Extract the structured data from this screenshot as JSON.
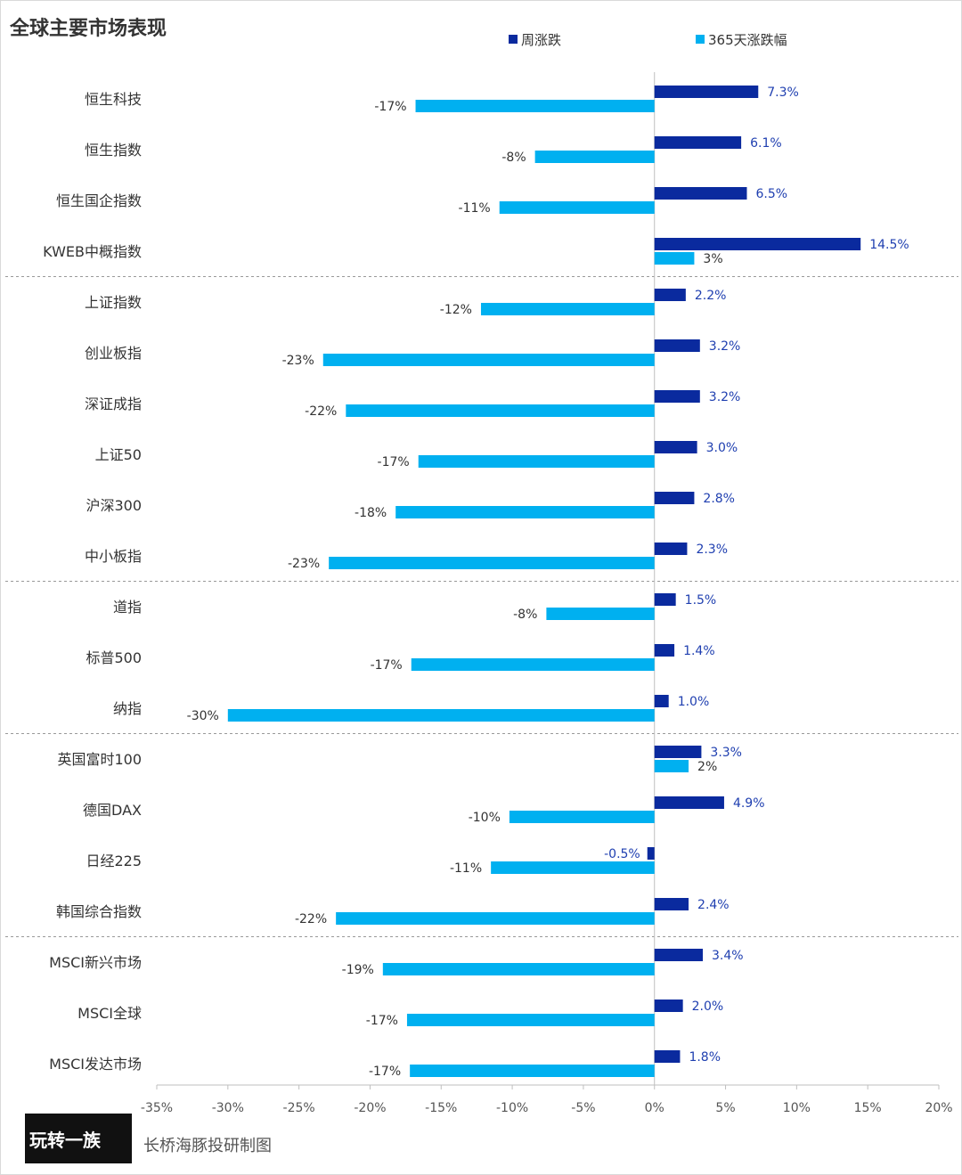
{
  "title": "全球主要市场表现",
  "legend": [
    {
      "label": "周涨跌",
      "color": "#0a2a9e"
    },
    {
      "label": "365天涨跌幅",
      "color": "#00b0f0"
    }
  ],
  "source_badge": "玩转一族",
  "source_text": "长桥海豚投研制图",
  "chart_data": {
    "type": "bar",
    "orientation": "horizontal",
    "title": "全球主要市场表现",
    "categories": [
      "恒生科技",
      "恒生指数",
      "恒生国企指数",
      "KWEB中概指数",
      "上证指数",
      "创业板指",
      "深证成指",
      "上证50",
      "沪深300",
      "中小板指",
      "道指",
      "标普500",
      "纳指",
      "英国富时100",
      "德国DAX",
      "日经225",
      "韩国综合指数",
      "MSCI新兴市场",
      "MSCI全球",
      "MSCI发达市场"
    ],
    "series": [
      {
        "name": "周涨跌",
        "color": "#0a2a9e",
        "values": [
          7.3,
          6.1,
          6.5,
          14.5,
          2.2,
          3.2,
          3.2,
          3.0,
          2.8,
          2.3,
          1.5,
          1.4,
          1.0,
          3.3,
          4.9,
          -0.5,
          2.4,
          3.4,
          2.0,
          1.8
        ],
        "labels": [
          "7.3%",
          "6.1%",
          "6.5%",
          "14.5%",
          "2.2%",
          "3.2%",
          "3.2%",
          "3.0%",
          "2.8%",
          "2.3%",
          "1.5%",
          "1.4%",
          "1.0%",
          "3.3%",
          "4.9%",
          "-0.5%",
          "2.4%",
          "3.4%",
          "2.0%",
          "1.8%"
        ]
      },
      {
        "name": "365天涨跌幅",
        "color": "#00b0f0",
        "values": [
          -16.8,
          -8.4,
          -10.9,
          2.8,
          -12.2,
          -23.3,
          -21.7,
          -16.6,
          -18.2,
          -22.9,
          -7.6,
          -17.1,
          -30.0,
          2.4,
          -10.2,
          -11.5,
          -22.4,
          -19.1,
          -17.4,
          -17.2
        ],
        "labels": [
          "-17%",
          "-8%",
          "-11%",
          "3%",
          "-12%",
          "-23%",
          "-22%",
          "-17%",
          "-18%",
          "-23%",
          "-8%",
          "-17%",
          "-30%",
          "2%",
          "-10%",
          "-11%",
          "-22%",
          "-19%",
          "-17%",
          "-17%"
        ]
      }
    ],
    "group_boundaries": [
      3,
      9,
      12,
      16
    ],
    "xlim": [
      -35,
      20
    ],
    "xticks": [
      -35,
      -30,
      -25,
      -20,
      -15,
      -10,
      -5,
      0,
      5,
      10,
      15,
      20
    ],
    "xtick_labels": [
      "-35%",
      "-30%",
      "-25%",
      "-20%",
      "-15%",
      "-10%",
      "-5%",
      "0%",
      "5%",
      "10%",
      "15%",
      "20%"
    ],
    "legend_position": "top",
    "grid": false
  }
}
